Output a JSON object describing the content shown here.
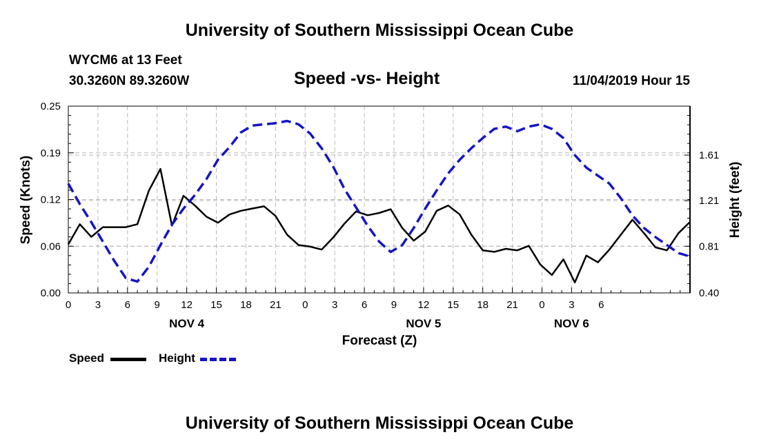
{
  "header": {
    "title_top": "University of Southern Mississippi Ocean Cube",
    "title_bottom": "University of Southern Mississippi Ocean Cube",
    "station": "WYCM6 at 13 Feet",
    "location": "30.3260N 89.3260W",
    "chart_title": "Speed -vs- Height",
    "datetime": "11/04/2019 Hour 15"
  },
  "legend": {
    "speed_label": "Speed",
    "height_label": "Height"
  },
  "colors": {
    "speed": "#000000",
    "height": "#1414c8",
    "grid": "#b8b8b8"
  },
  "chart_data": {
    "type": "line",
    "title": "Speed -vs- Height",
    "xlabel": "Forecast (Z)",
    "ylabel": "Speed (Knots)",
    "y2label": "Height (feet)",
    "x_range_hours": [
      0,
      63
    ],
    "x_tick_labels": [
      "0",
      "3",
      "6",
      "9",
      "12",
      "15",
      "18",
      "21",
      "0",
      "3",
      "6",
      "9",
      "12",
      "15",
      "18",
      "21",
      "0",
      "3",
      "6"
    ],
    "date_labels": [
      {
        "label": "NOV 4",
        "hour": 12
      },
      {
        "label": "NOV 5",
        "hour": 36
      },
      {
        "label": "NOV 6",
        "hour": 51
      }
    ],
    "y_ticks": [
      "0.00",
      "0.06",
      "0.12",
      "0.19",
      "0.25"
    ],
    "ylim": [
      0.0,
      0.25
    ],
    "y2_ticks": [
      "0.40",
      "0.81",
      "1.21",
      "1.61"
    ],
    "y2lim": [
      0.4,
      2.04
    ],
    "series": [
      {
        "name": "Speed",
        "axis": "left",
        "style": "solid",
        "x": [
          0,
          1,
          2,
          3,
          4,
          5,
          6,
          7,
          8,
          9,
          10,
          11,
          12,
          13,
          14,
          15,
          16,
          17,
          18,
          19,
          20,
          21,
          22,
          23,
          24,
          25,
          26,
          27,
          28,
          29,
          30,
          31,
          32,
          33,
          34,
          35,
          36,
          37,
          38,
          39,
          40,
          41,
          42,
          43,
          44,
          45,
          46,
          47,
          48,
          49,
          50,
          51,
          52,
          53,
          54
        ],
        "values": [
          0.065,
          0.092,
          0.075,
          0.088,
          0.088,
          0.088,
          0.092,
          0.137,
          0.166,
          0.09,
          0.13,
          0.117,
          0.102,
          0.094,
          0.105,
          0.11,
          0.113,
          0.116,
          0.103,
          0.078,
          0.064,
          0.062,
          0.058,
          0.074,
          0.093,
          0.109,
          0.104,
          0.107,
          0.112,
          0.087,
          0.07,
          0.082,
          0.11,
          0.117,
          0.105,
          0.078,
          0.057,
          0.055,
          0.059,
          0.057,
          0.063,
          0.038,
          0.024,
          0.045,
          0.014,
          0.05,
          0.041,
          0.058,
          0.078,
          0.098,
          0.08,
          0.061,
          0.057,
          0.08,
          0.095
        ]
      },
      {
        "name": "Height",
        "axis": "right",
        "style": "dashed",
        "x": [
          0,
          1,
          2,
          3,
          4,
          5,
          6,
          7,
          8,
          9,
          10,
          11,
          12,
          13,
          14,
          15,
          16,
          17,
          18,
          19,
          20,
          21,
          22,
          23,
          24,
          25,
          26,
          27,
          28,
          29,
          30,
          31,
          32,
          33,
          34,
          35,
          36,
          37,
          38,
          39,
          40,
          41,
          42,
          43,
          44,
          45,
          46,
          47,
          48,
          49,
          50,
          51,
          52,
          53,
          54
        ],
        "values": [
          1.36,
          1.18,
          1.02,
          0.85,
          0.68,
          0.53,
          0.5,
          0.63,
          0.82,
          1.0,
          1.14,
          1.26,
          1.4,
          1.57,
          1.68,
          1.81,
          1.87,
          1.88,
          1.89,
          1.91,
          1.88,
          1.8,
          1.67,
          1.51,
          1.31,
          1.15,
          0.99,
          0.85,
          0.76,
          0.82,
          0.97,
          1.14,
          1.3,
          1.45,
          1.57,
          1.67,
          1.76,
          1.84,
          1.86,
          1.82,
          1.86,
          1.88,
          1.84,
          1.76,
          1.61,
          1.5,
          1.43,
          1.36,
          1.23,
          1.08,
          0.97,
          0.89,
          0.82,
          0.75,
          0.72
        ]
      }
    ]
  }
}
